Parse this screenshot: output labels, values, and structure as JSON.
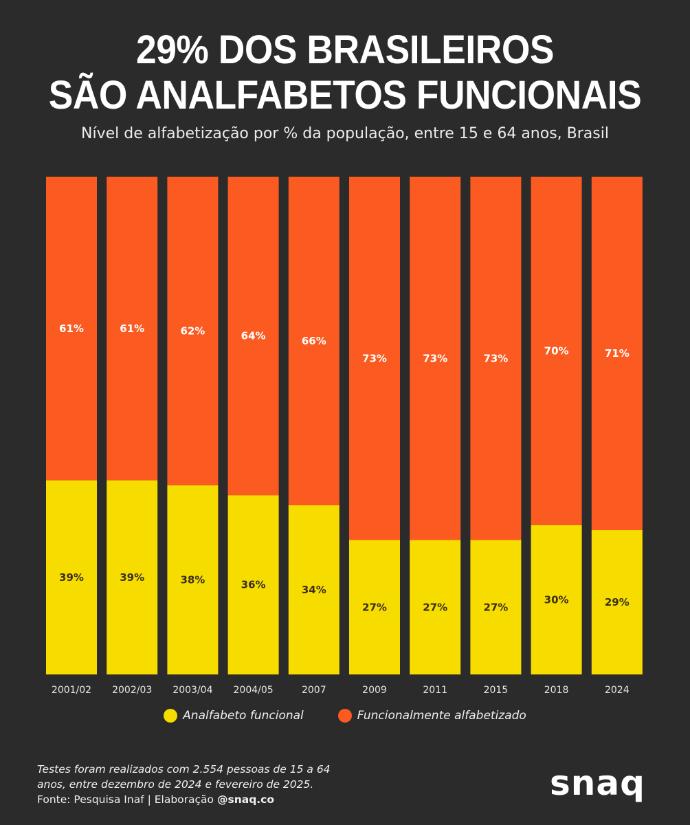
{
  "colors": {
    "background": "#2b2b2b",
    "analfabeto": "#f7dc00",
    "alfabetizado": "#fb5a20",
    "label_dark": "#3a2f1a",
    "label_light": "#ffffff"
  },
  "header": {
    "title_line1": "29% DOS BRASILEIROS",
    "title_line2": "SÃO ANALFABETOS FUNCIONAIS",
    "subtitle": "Nível de alfabetização por % da população, entre 15 e 64 anos, Brasil"
  },
  "chart_data": {
    "type": "bar",
    "stacked": true,
    "title": "29% DOS BRASILEIROS SÃO ANALFABETOS FUNCIONAIS",
    "subtitle": "Nível de alfabetização por % da população, entre 15 e 64 anos, Brasil",
    "categories": [
      "2001/02",
      "2002/03",
      "2003/04",
      "2004/05",
      "2007",
      "2009",
      "2011",
      "2015",
      "2018",
      "2024"
    ],
    "series": [
      {
        "name": "Analfabeto funcional",
        "color": "#f7dc00",
        "values": [
          39,
          39,
          38,
          36,
          34,
          27,
          27,
          27,
          30,
          29
        ]
      },
      {
        "name": "Funcionalmente alfabetizado",
        "color": "#fb5a20",
        "values": [
          61,
          61,
          62,
          64,
          66,
          73,
          73,
          73,
          70,
          71
        ]
      }
    ],
    "ylim": [
      0,
      100
    ],
    "xlabel": "",
    "ylabel": "",
    "grid": false,
    "legend_position": "bottom"
  },
  "legend": {
    "items": [
      {
        "label": "Analfabeto funcional",
        "color": "#f7dc00"
      },
      {
        "label": "Funcionalmente alfabetizado",
        "color": "#fb5a20"
      }
    ]
  },
  "footer": {
    "note_line1": "Testes foram realizados com 2.554 pessoas de 15 a 64",
    "note_line2": "anos, entre dezembro de 2024 e fevereiro de 2025.",
    "source_prefix": "Fonte: Pesquisa Inaf | Elaboração ",
    "source_handle": "@snaq.co",
    "logo": "snaq"
  }
}
